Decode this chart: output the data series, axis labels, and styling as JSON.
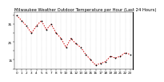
{
  "title": "Milwaukee Weather Outdoor Temperature per Hour (Last 24 Hours)",
  "hours": [
    0,
    1,
    2,
    3,
    4,
    5,
    6,
    7,
    8,
    9,
    10,
    11,
    12,
    13,
    14,
    15,
    16,
    17,
    18,
    19,
    20,
    21,
    22,
    23
  ],
  "temps": [
    40,
    37,
    34,
    30,
    34,
    37,
    32,
    35,
    30,
    27,
    22,
    27,
    24,
    22,
    18,
    15,
    12,
    13,
    14,
    17,
    16,
    17,
    19,
    18
  ],
  "line_color": "#cc0000",
  "marker_color": "#000000",
  "background_color": "#ffffff",
  "grid_color": "#666666",
  "ylim": [
    10,
    42
  ],
  "ytick_labels": [
    "",
    "15",
    "",
    "25",
    "",
    "35",
    ""
  ],
  "ytick_vals": [
    10,
    15,
    20,
    25,
    30,
    35,
    40
  ],
  "title_fontsize": 3.8,
  "tick_fontsize": 3.0
}
